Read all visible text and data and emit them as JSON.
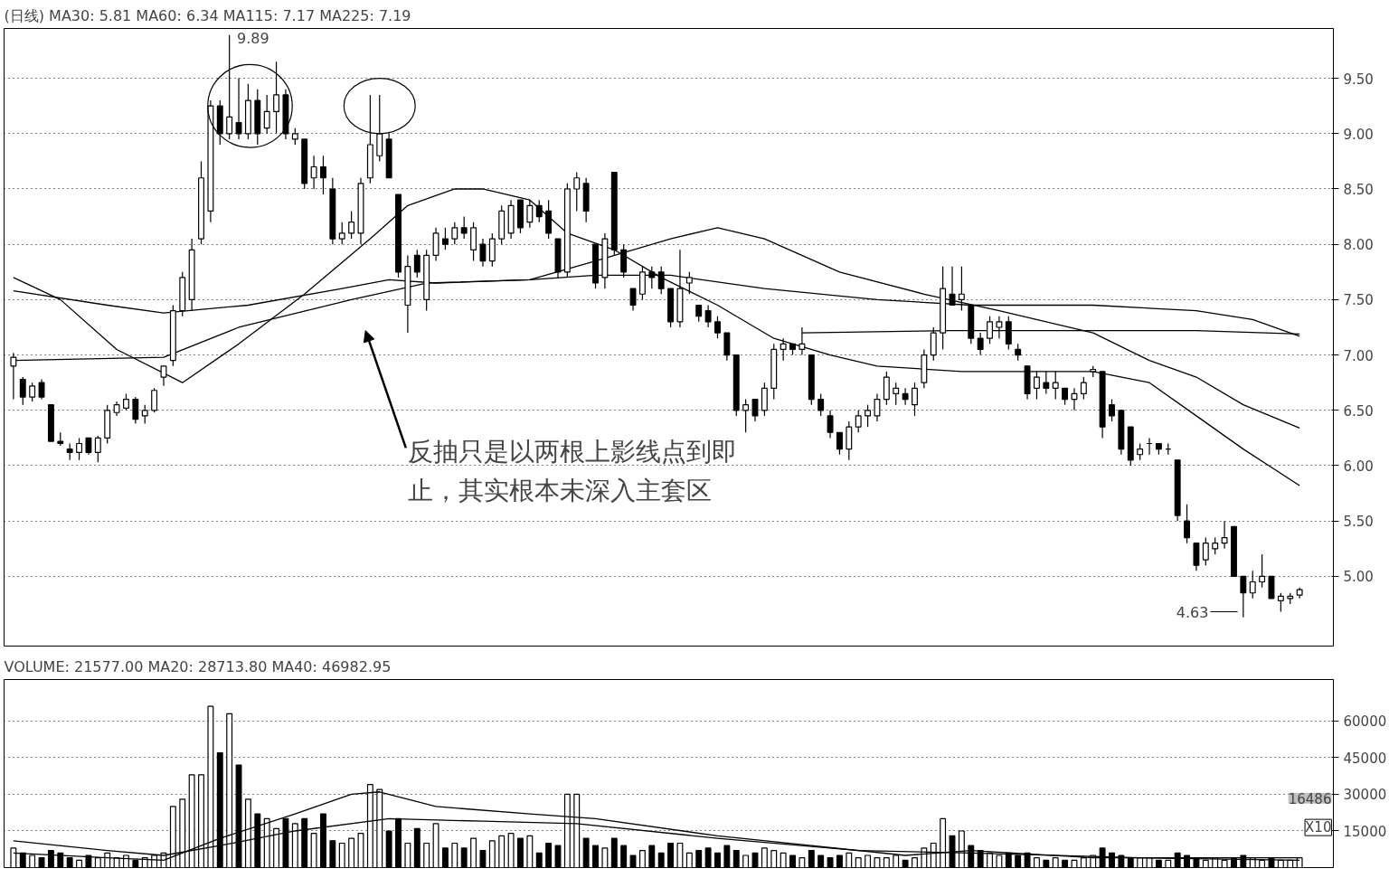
{
  "chart_data": [
    {
      "type": "candlestick",
      "title": "(日线)",
      "color": "#000000",
      "categories": [
        null,
        null,
        null,
        null,
        null,
        null,
        null,
        null,
        null,
        null,
        null,
        null,
        null,
        null,
        null,
        null,
        null,
        null,
        null,
        null,
        null,
        null,
        null,
        null,
        null,
        null,
        null,
        null,
        null,
        null,
        null,
        null,
        null,
        null,
        null,
        null,
        null,
        null,
        null,
        null,
        null,
        null,
        null,
        null,
        null,
        null,
        null,
        null,
        null,
        null,
        null,
        null,
        null,
        null,
        null,
        null,
        null,
        null,
        null,
        null,
        null,
        null,
        null,
        null,
        null,
        null,
        null,
        null,
        null,
        null,
        null,
        null,
        null,
        null,
        null,
        null,
        null,
        null,
        null,
        null,
        null,
        null,
        null,
        null,
        null,
        null,
        null,
        null,
        null,
        null,
        null,
        null,
        null,
        null,
        null,
        null,
        null,
        null,
        null,
        null,
        null,
        null,
        null,
        null,
        null,
        null,
        null,
        null,
        null,
        null,
        null,
        null,
        null,
        null,
        null,
        null,
        null,
        null,
        null,
        null,
        null,
        null,
        null,
        null,
        null,
        null,
        null,
        null,
        null,
        null,
        null,
        null,
        null,
        null,
        null,
        null,
        null,
        null
      ],
      "ohlc": [
        [
          6.9,
          7.02,
          6.6,
          6.98
        ],
        [
          6.78,
          6.8,
          6.55,
          6.62
        ],
        [
          6.62,
          6.75,
          6.58,
          6.72
        ],
        [
          6.75,
          6.78,
          6.6,
          6.62
        ],
        [
          6.55,
          6.55,
          6.22,
          6.22
        ],
        [
          6.22,
          6.3,
          6.18,
          6.2
        ],
        [
          6.15,
          6.2,
          6.05,
          6.12
        ],
        [
          6.12,
          6.25,
          6.05,
          6.2
        ],
        [
          6.25,
          6.25,
          6.1,
          6.12
        ],
        [
          6.12,
          6.27,
          6.03,
          6.25
        ],
        [
          6.25,
          6.55,
          6.2,
          6.5
        ],
        [
          6.48,
          6.58,
          6.45,
          6.55
        ],
        [
          6.52,
          6.65,
          6.5,
          6.6
        ],
        [
          6.6,
          6.62,
          6.38,
          6.42
        ],
        [
          6.45,
          6.55,
          6.38,
          6.5
        ],
        [
          6.5,
          6.7,
          6.48,
          6.68
        ],
        [
          6.8,
          6.9,
          6.72,
          6.9
        ],
        [
          6.95,
          7.45,
          6.9,
          7.4
        ],
        [
          7.4,
          7.75,
          7.35,
          7.7
        ],
        [
          7.5,
          8.05,
          7.4,
          7.95
        ],
        [
          8.05,
          8.75,
          8.0,
          8.6
        ],
        [
          8.3,
          9.3,
          8.2,
          9.25
        ],
        [
          9.25,
          9.3,
          8.9,
          9.0
        ],
        [
          9.0,
          9.89,
          8.95,
          9.15
        ],
        [
          9.1,
          9.5,
          8.95,
          9.0
        ],
        [
          9.0,
          9.45,
          8.95,
          9.3
        ],
        [
          9.3,
          9.4,
          8.9,
          9.0
        ],
        [
          9.05,
          9.35,
          9.0,
          9.2
        ],
        [
          9.2,
          9.65,
          9.0,
          9.35
        ],
        [
          9.35,
          9.4,
          8.95,
          9.0
        ],
        [
          8.95,
          9.05,
          8.9,
          9.0
        ],
        [
          8.95,
          8.95,
          8.5,
          8.55
        ],
        [
          8.6,
          8.8,
          8.5,
          8.7
        ],
        [
          8.7,
          8.8,
          8.45,
          8.6
        ],
        [
          8.5,
          8.6,
          8.0,
          8.05
        ],
        [
          8.05,
          8.2,
          8.0,
          8.1
        ],
        [
          8.1,
          8.3,
          8.05,
          8.2
        ],
        [
          8.1,
          8.6,
          8.0,
          8.55
        ],
        [
          8.6,
          9.35,
          8.55,
          8.9
        ],
        [
          8.8,
          9.35,
          8.75,
          9.0
        ],
        [
          8.95,
          9.0,
          8.6,
          8.6
        ],
        [
          8.45,
          8.45,
          7.7,
          7.75
        ],
        [
          7.45,
          7.9,
          7.2,
          7.8
        ],
        [
          7.9,
          7.95,
          7.7,
          7.75
        ],
        [
          7.5,
          7.95,
          7.4,
          7.9
        ],
        [
          7.9,
          8.15,
          7.85,
          8.1
        ],
        [
          8.05,
          8.15,
          7.95,
          8.0
        ],
        [
          8.05,
          8.2,
          8.0,
          8.15
        ],
        [
          8.15,
          8.25,
          8.05,
          8.1
        ],
        [
          7.95,
          8.2,
          7.85,
          8.15
        ],
        [
          8.0,
          8.05,
          7.8,
          7.85
        ],
        [
          7.85,
          8.1,
          7.8,
          8.05
        ],
        [
          8.05,
          8.35,
          8.0,
          8.3
        ],
        [
          8.1,
          8.4,
          8.05,
          8.35
        ],
        [
          8.4,
          8.4,
          8.1,
          8.15
        ],
        [
          8.2,
          8.4,
          8.15,
          8.35
        ],
        [
          8.35,
          8.4,
          8.2,
          8.25
        ],
        [
          8.3,
          8.4,
          8.05,
          8.1
        ],
        [
          8.05,
          8.05,
          7.7,
          7.75
        ],
        [
          7.75,
          8.55,
          7.7,
          8.5
        ],
        [
          8.5,
          8.65,
          8.3,
          8.6
        ],
        [
          8.55,
          8.6,
          8.2,
          8.3
        ],
        [
          8.0,
          8.0,
          7.6,
          7.65
        ],
        [
          7.7,
          8.1,
          7.6,
          8.05
        ],
        [
          8.65,
          8.65,
          7.9,
          7.95
        ],
        [
          7.95,
          8.0,
          7.7,
          7.75
        ],
        [
          7.6,
          7.6,
          7.4,
          7.45
        ],
        [
          7.55,
          7.8,
          7.5,
          7.75
        ],
        [
          7.75,
          7.8,
          7.6,
          7.7
        ],
        [
          7.75,
          7.8,
          7.55,
          7.6
        ],
        [
          7.6,
          7.6,
          7.25,
          7.3
        ],
        [
          7.3,
          7.95,
          7.25,
          7.6
        ],
        [
          7.65,
          7.75,
          7.55,
          7.7
        ],
        [
          7.45,
          7.45,
          7.3,
          7.35
        ],
        [
          7.4,
          7.45,
          7.25,
          7.3
        ],
        [
          7.3,
          7.35,
          7.15,
          7.2
        ],
        [
          7.2,
          7.2,
          6.95,
          7.0
        ],
        [
          7.0,
          7.0,
          6.45,
          6.5
        ],
        [
          6.5,
          6.6,
          6.3,
          6.55
        ],
        [
          6.6,
          6.6,
          6.4,
          6.45
        ],
        [
          6.5,
          6.75,
          6.45,
          6.7
        ],
        [
          6.7,
          7.1,
          6.6,
          7.05
        ],
        [
          7.05,
          7.15,
          6.95,
          7.1
        ],
        [
          7.1,
          7.1,
          7.0,
          7.05
        ],
        [
          7.05,
          7.25,
          7.0,
          7.1
        ],
        [
          7.0,
          7.0,
          6.55,
          6.6
        ],
        [
          6.6,
          6.65,
          6.45,
          6.5
        ],
        [
          6.45,
          6.5,
          6.25,
          6.3
        ],
        [
          6.3,
          6.3,
          6.1,
          6.15
        ],
        [
          6.15,
          6.4,
          6.05,
          6.35
        ],
        [
          6.35,
          6.5,
          6.3,
          6.45
        ],
        [
          6.45,
          6.55,
          6.35,
          6.5
        ],
        [
          6.45,
          6.65,
          6.4,
          6.6
        ],
        [
          6.6,
          6.85,
          6.55,
          6.8
        ],
        [
          6.65,
          6.75,
          6.55,
          6.7
        ],
        [
          6.65,
          6.7,
          6.55,
          6.6
        ],
        [
          6.55,
          6.75,
          6.45,
          6.7
        ],
        [
          6.75,
          7.05,
          6.7,
          7.0
        ],
        [
          7.0,
          7.25,
          6.95,
          7.2
        ],
        [
          7.2,
          7.8,
          7.05,
          7.6
        ],
        [
          7.55,
          7.8,
          7.45,
          7.45
        ],
        [
          7.5,
          7.8,
          7.4,
          7.55
        ],
        [
          7.45,
          7.45,
          7.1,
          7.15
        ],
        [
          7.15,
          7.2,
          7.0,
          7.05
        ],
        [
          7.15,
          7.35,
          7.1,
          7.3
        ],
        [
          7.25,
          7.35,
          7.15,
          7.3
        ],
        [
          7.3,
          7.35,
          7.05,
          7.1
        ],
        [
          7.05,
          7.1,
          6.95,
          7.0
        ],
        [
          6.9,
          6.9,
          6.6,
          6.65
        ],
        [
          6.7,
          6.85,
          6.6,
          6.8
        ],
        [
          6.75,
          6.85,
          6.65,
          6.7
        ],
        [
          6.7,
          6.85,
          6.6,
          6.75
        ],
        [
          6.7,
          6.7,
          6.55,
          6.6
        ],
        [
          6.6,
          6.7,
          6.5,
          6.65
        ],
        [
          6.65,
          6.8,
          6.6,
          6.75
        ],
        [
          6.85,
          6.9,
          6.8,
          6.87
        ],
        [
          6.85,
          6.85,
          6.25,
          6.35
        ],
        [
          6.55,
          6.6,
          6.4,
          6.45
        ],
        [
          6.5,
          6.5,
          6.1,
          6.15
        ],
        [
          6.35,
          6.35,
          6.0,
          6.05
        ],
        [
          6.1,
          6.2,
          6.05,
          6.15
        ],
        [
          6.2,
          6.25,
          6.1,
          6.2
        ],
        [
          6.2,
          6.2,
          6.1,
          6.15
        ],
        [
          6.15,
          6.2,
          6.1,
          6.15
        ],
        [
          6.05,
          6.05,
          5.5,
          5.55
        ],
        [
          5.5,
          5.65,
          5.3,
          5.35
        ],
        [
          5.3,
          5.3,
          5.05,
          5.1
        ],
        [
          5.15,
          5.35,
          5.1,
          5.3
        ],
        [
          5.25,
          5.35,
          5.2,
          5.3
        ],
        [
          5.3,
          5.5,
          5.25,
          5.35
        ],
        [
          5.45,
          5.45,
          5.0,
          5.0
        ],
        [
          5.0,
          5.0,
          4.63,
          4.85
        ],
        [
          4.85,
          5.05,
          4.8,
          4.95
        ],
        [
          4.95,
          5.2,
          4.9,
          5.0
        ],
        [
          5.0,
          5.0,
          4.8,
          4.8
        ],
        [
          4.78,
          4.85,
          4.68,
          4.82
        ],
        [
          4.8,
          4.85,
          4.75,
          4.82
        ],
        [
          4.83,
          4.9,
          4.8,
          4.88
        ]
      ],
      "series": [
        {
          "name": "MA30: 5.81",
          "type": "line",
          "color": "#000000",
          "values": [
            7.7,
            null,
            null,
            null,
            null,
            7.5,
            null,
            null,
            null,
            null,
            null,
            7.05,
            null,
            null,
            null,
            null,
            null,
            null,
            6.75,
            null,
            null,
            null,
            null,
            null,
            7.1,
            null,
            null,
            null,
            null,
            null,
            null,
            7.55,
            null,
            null,
            null,
            null,
            null,
            null,
            8.05,
            null,
            null,
            null,
            8.35,
            null,
            null,
            null,
            null,
            8.5,
            null,
            null,
            8.5,
            null,
            null,
            null,
            null,
            8.4,
            null,
            null,
            null,
            8.1,
            null,
            null,
            null,
            null,
            7.95,
            null,
            null,
            null,
            null,
            7.7,
            null,
            null,
            null,
            null,
            null,
            7.45,
            null,
            null,
            null,
            null,
            null,
            7.15,
            null,
            null,
            null,
            null,
            null,
            7.0,
            null,
            null,
            null,
            null,
            6.9,
            null,
            null,
            null,
            null,
            null,
            null,
            null,
            null,
            6.85,
            null,
            null,
            null,
            null,
            null,
            null,
            null,
            null,
            null,
            null,
            null,
            null,
            null,
            6.85,
            null,
            null,
            null,
            null,
            null,
            6.75,
            null,
            null,
            null,
            null,
            6.45,
            null,
            null,
            null,
            null,
            6.15,
            null,
            null,
            null,
            null,
            null,
            5.82
          ]
        },
        {
          "name": "MA60: 6.34",
          "type": "line",
          "color": "#000000",
          "values": [
            7.58,
            null,
            null,
            null,
            null,
            null,
            null,
            null,
            null,
            null,
            7.45,
            null,
            null,
            null,
            null,
            null,
            7.38,
            null,
            null,
            null,
            null,
            null,
            null,
            null,
            null,
            7.45,
            null,
            null,
            null,
            null,
            null,
            null,
            null,
            null,
            null,
            7.6,
            null,
            null,
            null,
            null,
            7.68,
            null,
            null,
            null,
            null,
            7.65,
            null,
            null,
            null,
            null,
            null,
            null,
            null,
            null,
            null,
            7.68,
            null,
            null,
            null,
            null,
            null,
            null,
            7.85,
            null,
            null,
            null,
            null,
            null,
            null,
            null,
            8.05,
            null,
            null,
            null,
            null,
            8.15,
            null,
            null,
            null,
            null,
            8.05,
            null,
            null,
            null,
            null,
            null,
            null,
            null,
            7.75,
            null,
            null,
            null,
            null,
            null,
            null,
            null,
            null,
            7.55,
            null,
            null,
            null,
            null,
            null,
            null,
            null,
            7.4,
            null,
            null,
            null,
            null,
            null,
            null,
            null,
            null,
            null,
            7.2,
            null,
            null,
            null,
            null,
            null,
            6.95,
            null,
            null,
            null,
            null,
            6.8,
            null,
            null,
            null,
            null,
            6.55,
            null,
            null,
            null,
            null,
            null,
            6.34
          ]
        },
        {
          "name": "MA115: 7.17",
          "type": "line",
          "color": "#000000",
          "values": [
            6.95,
            null,
            null,
            null,
            null,
            null,
            null,
            null,
            null,
            null,
            null,
            null,
            null,
            null,
            null,
            null,
            6.98,
            null,
            null,
            null,
            null,
            null,
            null,
            null,
            7.25,
            null,
            null,
            null,
            null,
            null,
            null,
            null,
            null,
            null,
            null,
            null,
            7.5,
            null,
            null,
            null,
            null,
            null,
            null,
            null,
            7.65,
            null,
            null,
            null,
            null,
            null,
            null,
            null,
            null,
            null,
            null,
            7.68,
            null,
            null,
            null,
            null,
            null,
            null,
            7.72,
            null,
            null,
            null,
            null,
            null,
            null,
            null,
            7.72,
            null,
            null,
            null,
            null,
            null,
            null,
            null,
            null,
            null,
            7.6,
            null,
            null,
            null,
            null,
            null,
            null,
            null,
            null,
            null,
            null,
            null,
            7.5,
            null,
            null,
            null,
            null,
            null,
            null,
            null,
            null,
            null,
            7.45,
            null,
            null,
            null,
            null,
            null,
            null,
            null,
            null,
            null,
            null,
            null,
            null,
            7.45,
            null,
            null,
            null,
            null,
            null,
            null,
            null,
            null,
            null,
            null,
            7.4,
            null,
            null,
            null,
            null,
            null,
            7.32,
            null,
            null,
            null,
            null,
            7.17
          ]
        },
        {
          "name": "MA225: 7.19",
          "type": "line",
          "color": "#000000",
          "values": [
            null,
            null,
            null,
            null,
            null,
            null,
            null,
            null,
            null,
            null,
            null,
            null,
            null,
            null,
            null,
            null,
            null,
            null,
            null,
            null,
            null,
            null,
            null,
            null,
            null,
            null,
            null,
            null,
            null,
            null,
            null,
            null,
            null,
            null,
            null,
            null,
            null,
            null,
            null,
            null,
            null,
            null,
            null,
            null,
            null,
            null,
            null,
            null,
            null,
            null,
            null,
            null,
            null,
            null,
            null,
            null,
            null,
            null,
            null,
            null,
            null,
            null,
            null,
            null,
            null,
            null,
            null,
            null,
            null,
            null,
            null,
            null,
            null,
            null,
            null,
            null,
            null,
            null,
            null,
            null,
            null,
            null,
            null,
            null,
            7.2,
            null,
            null,
            null,
            null,
            null,
            null,
            null,
            null,
            null,
            null,
            null,
            null,
            null,
            null,
            null,
            7.22,
            null,
            null,
            null,
            null,
            null,
            null,
            null,
            null,
            null,
            null,
            null,
            null,
            null,
            null,
            7.22,
            null,
            null,
            null,
            null,
            null,
            null,
            null,
            null,
            null,
            null,
            7.22,
            null,
            null,
            null,
            null,
            null,
            null,
            null,
            null,
            null,
            null,
            7.19
          ]
        }
      ],
      "ylim": [
        4.37,
        9.95
      ],
      "yticks": [
        {
          "value": 5,
          "label": "5.00"
        },
        {
          "value": 5.5,
          "label": "5.50"
        },
        {
          "value": 6,
          "label": "6.00"
        },
        {
          "value": 6.5,
          "label": "6.50"
        },
        {
          "value": 7,
          "label": "7.00"
        },
        {
          "value": 7.5,
          "label": "7.50"
        },
        {
          "value": 8,
          "label": "8.00"
        },
        {
          "value": 8.5,
          "label": "8.50"
        },
        {
          "value": 9,
          "label": "9.00"
        },
        {
          "value": 9.5,
          "label": "9.50"
        }
      ],
      "grid": "y",
      "tick_labels": "y",
      "annotations": [
        "9.89",
        "4.63",
        "反抽只是以两根上影线点到即止，其实根本未深入主套区"
      ]
    },
    {
      "type": "bar",
      "title": "VOLUME: 21577.00",
      "color": "#000000",
      "categories": [
        null,
        null,
        null,
        null,
        null,
        null,
        null,
        null,
        null,
        null,
        null,
        null,
        null,
        null,
        null,
        null,
        null,
        null,
        null,
        null,
        null,
        null,
        null,
        null,
        null,
        null,
        null,
        null,
        null,
        null,
        null,
        null,
        null,
        null,
        null,
        null,
        null,
        null,
        null,
        null,
        null,
        null,
        null,
        null,
        null,
        null,
        null,
        null,
        null,
        null,
        null,
        null,
        null,
        null,
        null,
        null,
        null,
        null,
        null,
        null,
        null,
        null,
        null,
        null,
        null,
        null,
        null,
        null,
        null,
        null,
        null,
        null,
        null,
        null,
        null,
        null,
        null,
        null,
        null,
        null,
        null,
        null,
        null,
        null,
        null,
        null,
        null,
        null,
        null,
        null,
        null,
        null,
        null,
        null,
        null,
        null,
        null,
        null,
        null,
        null,
        null,
        null,
        null,
        null,
        null,
        null,
        null,
        null,
        null,
        null,
        null,
        null,
        null,
        null,
        null,
        null,
        null,
        null,
        null,
        null,
        null,
        null,
        null,
        null,
        null,
        null,
        null,
        null,
        null,
        null,
        null,
        null,
        null,
        null,
        null,
        null,
        null,
        null
      ],
      "values": [
        8000,
        6000,
        5000,
        4000,
        7000,
        6000,
        4000,
        3000,
        5000,
        4000,
        6000,
        4000,
        5000,
        3000,
        4000,
        5000,
        6000,
        25000,
        28000,
        38000,
        38000,
        66000,
        47000,
        63000,
        42000,
        28000,
        22000,
        20000,
        16000,
        20000,
        18000,
        20000,
        14000,
        22000,
        11000,
        10000,
        12000,
        14000,
        34000,
        32000,
        15000,
        20000,
        10000,
        16000,
        10000,
        18000,
        8000,
        10000,
        8000,
        12000,
        7000,
        11000,
        13000,
        14000,
        12000,
        13000,
        6000,
        10000,
        9000,
        30000,
        30000,
        12000,
        9000,
        8000,
        12000,
        9000,
        5000,
        7000,
        9000,
        6000,
        10000,
        10000,
        6000,
        7000,
        8000,
        6000,
        9000,
        7000,
        5000,
        6000,
        8000,
        7000,
        6000,
        5000,
        4000,
        7000,
        5000,
        4000,
        5000,
        6000,
        4000,
        5000,
        4000,
        4000,
        5000,
        3000,
        4000,
        8000,
        10000,
        20000,
        13000,
        15000,
        9000,
        7000,
        6000,
        5000,
        6000,
        5000,
        6000,
        4000,
        3000,
        4000,
        3000,
        3000,
        4000,
        5000,
        8000,
        6000,
        5000,
        4000,
        4000,
        4000,
        3000,
        3000,
        6000,
        5000,
        4000,
        3000,
        4000,
        3000,
        4000,
        5000,
        4000,
        3000,
        4000,
        3000,
        3000,
        4000
      ],
      "series": [
        {
          "name": "MA20: 28713.80",
          "type": "line",
          "color": "#000000",
          "values": [
            6000,
            null,
            null,
            null,
            null,
            null,
            null,
            null,
            null,
            null,
            4000,
            null,
            null,
            null,
            null,
            null,
            3000,
            null,
            null,
            null,
            null,
            null,
            12000,
            null,
            null,
            null,
            null,
            null,
            null,
            null,
            22000,
            null,
            null,
            null,
            null,
            null,
            30000,
            null,
            null,
            31000,
            null,
            null,
            null,
            null,
            null,
            25000,
            null,
            null,
            null,
            null,
            null,
            null,
            null,
            null,
            null,
            22000,
            null,
            null,
            null,
            null,
            null,
            null,
            20000,
            null,
            null,
            null,
            null,
            null,
            null,
            null,
            null,
            null,
            null,
            null,
            null,
            13000,
            null,
            null,
            null,
            null,
            null,
            null,
            null,
            null,
            null,
            9000,
            null,
            null,
            null,
            null,
            null,
            null,
            null,
            null,
            null,
            5000,
            null,
            null,
            null,
            null,
            null,
            null,
            7000,
            null,
            null,
            null,
            null,
            null,
            null,
            null,
            null,
            null,
            null,
            null,
            null,
            4000,
            null,
            null,
            null,
            null,
            null,
            null,
            null,
            null,
            null,
            null,
            null,
            null,
            null,
            null,
            null,
            null,
            null,
            null,
            null,
            null,
            null,
            4000
          ]
        },
        {
          "name": "MA40: 46982.95",
          "type": "line",
          "color": "#000000",
          "values": [
            11000,
            null,
            null,
            null,
            null,
            null,
            null,
            null,
            null,
            null,
            7000,
            null,
            null,
            null,
            null,
            null,
            5000,
            null,
            null,
            null,
            null,
            null,
            9000,
            null,
            null,
            null,
            null,
            null,
            null,
            null,
            15000,
            null,
            null,
            null,
            null,
            null,
            null,
            null,
            null,
            null,
            20000,
            null,
            null,
            null,
            null,
            null,
            null,
            null,
            null,
            null,
            19000,
            null,
            null,
            null,
            null,
            null,
            null,
            null,
            null,
            null,
            18000,
            null,
            null,
            null,
            null,
            null,
            null,
            null,
            null,
            null,
            null,
            null,
            null,
            null,
            null,
            12000,
            null,
            null,
            null,
            null,
            null,
            null,
            null,
            null,
            null,
            null,
            null,
            null,
            null,
            null,
            7000,
            null,
            null,
            null,
            null,
            null,
            null,
            null,
            null,
            null,
            null,
            null,
            6000,
            null,
            null,
            null,
            null,
            null,
            null,
            null,
            null,
            null,
            null,
            null,
            null,
            null,
            null,
            null,
            null,
            null,
            4000,
            null,
            null,
            null,
            null,
            null,
            null,
            null,
            null,
            null,
            null,
            null,
            null,
            null,
            null,
            null,
            null,
            3000
          ]
        }
      ],
      "ylim": [
        0,
        77000
      ],
      "yticks": [
        15000,
        30000,
        45000,
        60000
      ],
      "grid": "y",
      "tick_labels": "y",
      "annotations": [
        "16486",
        "X10"
      ]
    }
  ]
}
